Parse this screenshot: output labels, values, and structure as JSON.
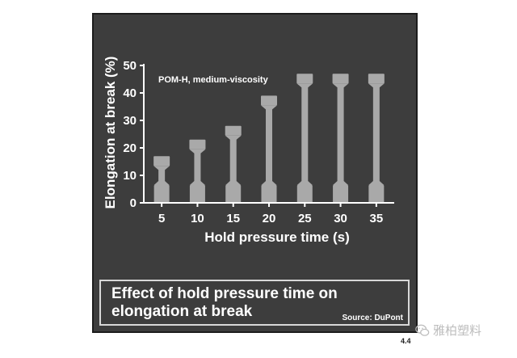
{
  "chart_data": {
    "type": "bar",
    "title": "",
    "xlabel": "Hold pressure time (s)",
    "ylabel": "Elongation at break (%)",
    "categories": [
      "5",
      "10",
      "15",
      "20",
      "25",
      "30",
      "35"
    ],
    "values": [
      17,
      23,
      28,
      39,
      47,
      47,
      47
    ],
    "ylim": [
      0,
      50
    ],
    "yticks": [
      "0",
      "10",
      "20",
      "30",
      "40",
      "50"
    ],
    "annotation": "POM-H, medium-viscosity",
    "grid": false,
    "marker": "stretched tensile test specimen",
    "colors": {
      "background": "#3d3d3d",
      "specimen": "#a9a9a9",
      "text": "#ffffff"
    }
  },
  "caption": {
    "title": "Effect of hold pressure time on elongation at break",
    "source": "Source: DuPont"
  },
  "page_number": "4.4",
  "watermark": {
    "icon": "wechat-icon",
    "text": "雅柏塑料"
  }
}
